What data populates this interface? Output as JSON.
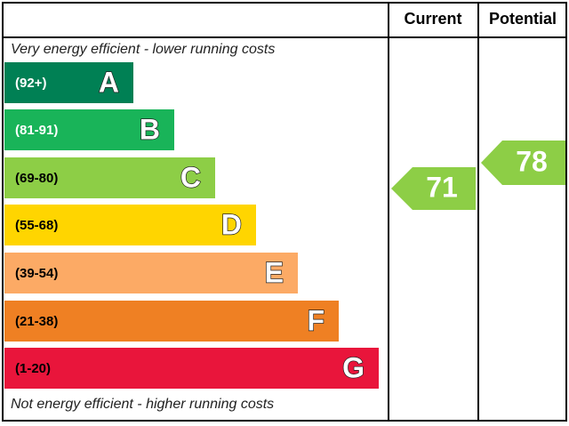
{
  "header": {
    "current": "Current",
    "potential": "Potential"
  },
  "top_note": "Very energy efficient - lower running costs",
  "bottom_note": "Not energy efficient - higher running costs",
  "bands": [
    {
      "range": "(92+)",
      "letter": "A"
    },
    {
      "range": "(81-91)",
      "letter": "B"
    },
    {
      "range": "(69-80)",
      "letter": "C"
    },
    {
      "range": "(55-68)",
      "letter": "D"
    },
    {
      "range": "(39-54)",
      "letter": "E"
    },
    {
      "range": "(21-38)",
      "letter": "F"
    },
    {
      "range": "(1-20)",
      "letter": "G"
    }
  ],
  "current": 71,
  "potential": 78
}
